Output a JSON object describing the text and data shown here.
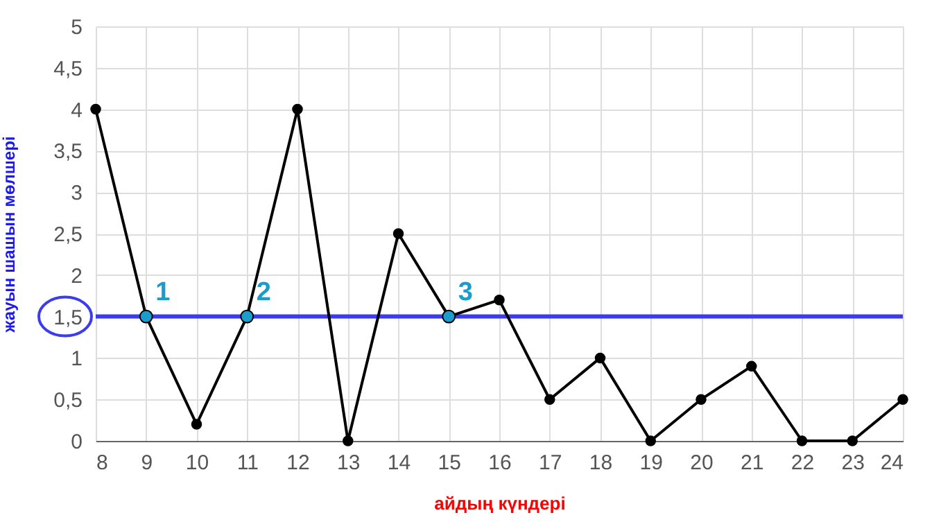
{
  "chart_data": {
    "type": "line",
    "xlabel": "айдың күндері",
    "ylabel": "жауын шашын мөлшері",
    "x": [
      8,
      9,
      10,
      11,
      12,
      13,
      14,
      15,
      16,
      17,
      18,
      19,
      20,
      21,
      22,
      23,
      24
    ],
    "series": [
      {
        "color": "#000000",
        "values": [
          4,
          1.5,
          0.2,
          1.5,
          4,
          0,
          2.5,
          1.5,
          1.7,
          0.5,
          1,
          0,
          0.5,
          0.9,
          0,
          0,
          0.5
        ]
      },
      {
        "type": "scatter",
        "color": "#1a9ccc",
        "x": [
          9,
          11,
          15
        ],
        "values": [
          1.5,
          1.5,
          1.5
        ]
      }
    ],
    "xlim": [
      8,
      24
    ],
    "xticks": [
      8,
      9,
      10,
      11,
      12,
      13,
      14,
      15,
      16,
      17,
      18,
      19,
      20,
      21,
      22,
      23,
      24
    ],
    "ylim": [
      0,
      5
    ],
    "yticks": [
      0,
      {
        "value": 0.5,
        "label": "0,5"
      },
      1,
      {
        "value": 1.5,
        "label": "1,5"
      },
      2,
      {
        "value": 2.5,
        "label": "2,5"
      },
      3,
      {
        "value": 3.5,
        "label": "3,5"
      },
      4,
      {
        "value": 4.5,
        "label": "4,5"
      },
      5
    ],
    "ref_lines": [
      {
        "axis": "y",
        "value": 1.5,
        "color": "#3b3bf0"
      }
    ],
    "annotations": [
      {
        "text": "1",
        "x": 9,
        "y": 1.5
      },
      {
        "text": "2",
        "x": 11,
        "y": 1.5
      },
      {
        "text": "3",
        "x": 15,
        "y": 1.5
      }
    ],
    "grid": true,
    "marker": "circle"
  }
}
